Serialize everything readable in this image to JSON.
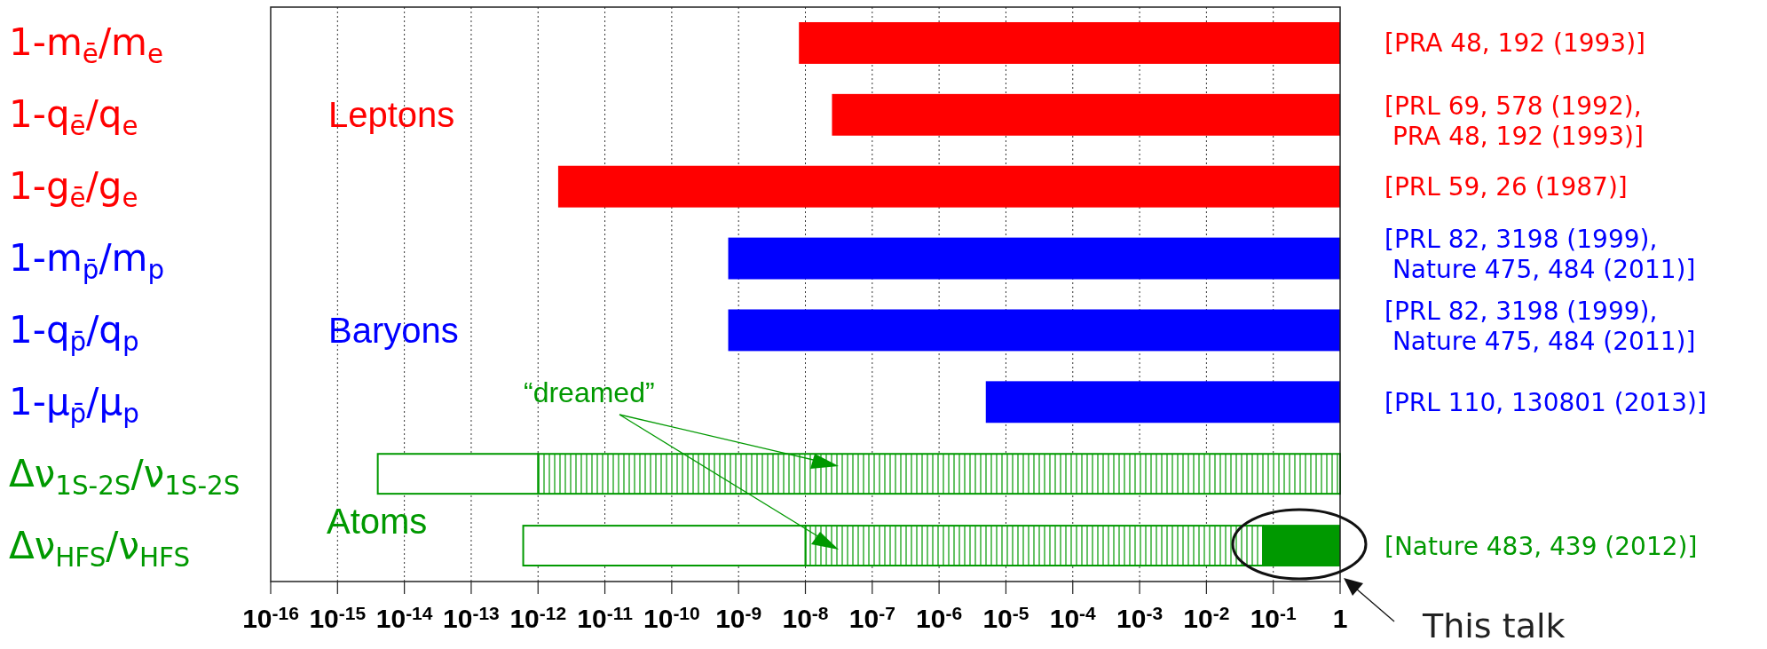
{
  "chart_data": {
    "type": "bar",
    "orientation": "horizontal",
    "log": "x",
    "grid": "x",
    "categories": [
      "1-m$_{ē}$/m$_{e}$",
      "1-q$_{ē}$/q$_{e}$",
      "1-g$_{ē}$/g$_{e}$",
      "1-m$_{p̄}$/m$_{p}$",
      "1-q$_{p̄}$/q$_{p}$",
      "1-μ$_{p̄}$/μ$_{p}$",
      "Δν$_{1S-2S}$/ν$_{1S-2S}$",
      "Δν$_{HFS}$/ν$_{HFS}$"
    ],
    "series": [
      {
        "colors": [
          "#ff0000",
          "#ff0000",
          "#ff0000",
          "#0000ff",
          "#0000ff",
          "#0000ff",
          "#009900",
          "#009900"
        ],
        "base": [
          8e-09,
          2.5e-08,
          2e-12,
          7e-10,
          7e-10,
          5e-06,
          null,
          0.07
        ],
        "values": [
          0.999999992,
          0.999999975,
          0.999999999998,
          0.9999999993,
          0.9999999993,
          0.999995,
          null,
          0.93
        ]
      },
      {
        "color": "#009900",
        "base": [
          null,
          null,
          null,
          null,
          null,
          null,
          1e-12,
          1e-08
        ],
        "values": [
          null,
          null,
          null,
          null,
          null,
          null,
          0.999999999999,
          0.06999999
        ]
      },
      {
        "color": "#009900",
        "base": [
          null,
          null,
          null,
          null,
          null,
          null,
          4e-15,
          6e-13
        ],
        "values": [
          null,
          null,
          null,
          null,
          null,
          null,
          9.96e-13,
          9.9994e-09
        ]
      }
    ],
    "xlim": [
      1e-16,
      1
    ],
    "xticks": [
      {
        "value": 1e-16,
        "label": "10$^{-16}$"
      },
      {
        "value": 1e-15,
        "label": "10$^{-15}$"
      },
      {
        "value": 1e-14,
        "label": "10$^{-14}$"
      },
      {
        "value": 1e-13,
        "label": "10$^{-13}$"
      },
      {
        "value": 1e-12,
        "label": "10$^{-12}$"
      },
      {
        "value": 1e-11,
        "label": "10$^{-11}$"
      },
      {
        "value": 1e-10,
        "label": "10$^{-10}$"
      },
      {
        "value": 1e-09,
        "label": "10$^{-9}$"
      },
      {
        "value": 1e-08,
        "label": "10$^{-8}$"
      },
      {
        "value": 1e-07,
        "label": "10$^{-7}$"
      },
      {
        "value": 1e-06,
        "label": "10$^{-6}$"
      },
      {
        "value": 1e-05,
        "label": "10$^{-5}$"
      },
      {
        "value": 0.0001,
        "label": "10$^{-4}$"
      },
      {
        "value": 0.001,
        "label": "10$^{-3}$"
      },
      {
        "value": 0.01,
        "label": "10$^{-2}$"
      },
      {
        "value": 0.1,
        "label": "10$^{-1}$"
      },
      {
        "value": 1,
        "label": "1"
      }
    ],
    "annotations": [
      "Leptons",
      "Baryons",
      "Atoms",
      "“dreamed”",
      "[PRA 48, 192 (1993)]",
      "[PRL 69, 578 (1992),\n PRA 48, 192 (1993)]",
      "[PRL 59, 26 (1987)]",
      "[PRL 82, 3198 (1999),\n Nature 475, 484 (2011)]",
      "[PRL 82, 3198 (1999),\n Nature 475, 484 (2011)]",
      "[PRL 110, 130801 (2013)]",
      "[Nature 483, 439 (2012)]",
      "This talk"
    ]
  }
}
